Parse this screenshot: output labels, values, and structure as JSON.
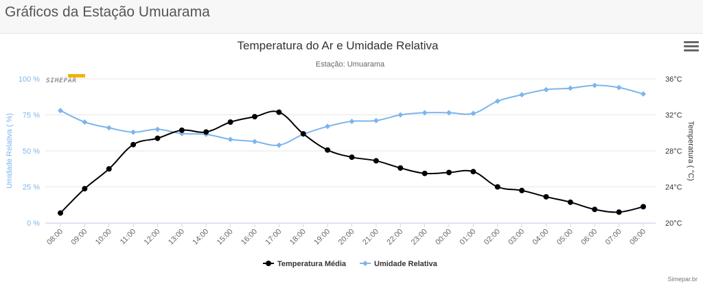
{
  "header": {
    "title": "Gráficos da Estação Umuarama"
  },
  "menu_icon": "hamburger-menu-icon",
  "logo": {
    "text": "SIMEPAR",
    "bar_color": "#f0b400"
  },
  "credits": "Simepar.br",
  "colors": {
    "temperature": "#000000",
    "humidity": "#7cb5ec",
    "humidity_axis": "#7cb5ec",
    "temperature_axis": "#333333",
    "grid": "#e6e6e6",
    "text": "#666666"
  },
  "chart_data": {
    "type": "line",
    "title": "Temperatura do Ar e Umidade Relativa",
    "subtitle": "Estação: Umuarama",
    "categories": [
      "08:00",
      "09:00",
      "10:00",
      "11:00",
      "12:00",
      "13:00",
      "14:00",
      "15:00",
      "16:00",
      "17:00",
      "18:00",
      "19:00",
      "20:00",
      "21:00",
      "22:00",
      "23:00",
      "00:00",
      "01:00",
      "02:00",
      "03:00",
      "04:00",
      "05:00",
      "06:00",
      "07:00",
      "08:00"
    ],
    "y_left": {
      "label": "Umidade Relativa ( %)",
      "min": 0,
      "max": 100,
      "ticks": [
        0,
        25,
        50,
        75,
        100
      ],
      "tick_labels": [
        "0 %",
        "25 %",
        "50 %",
        "75 %",
        "100 %"
      ]
    },
    "y_right": {
      "label": "Temperatura ( °C)",
      "min": 20,
      "max": 36,
      "ticks": [
        20,
        24,
        28,
        32,
        36
      ],
      "tick_labels": [
        "20°C",
        "24°C",
        "28°C",
        "32°C",
        "36°C"
      ]
    },
    "grid": true,
    "legend_position": "bottom-center",
    "series": [
      {
        "name": "Temperatura Média",
        "axis": "right",
        "marker": "circle",
        "values": [
          21.1,
          23.8,
          26.0,
          28.7,
          29.4,
          30.3,
          30.1,
          31.2,
          31.8,
          32.3,
          29.9,
          28.1,
          27.3,
          26.9,
          26.1,
          25.5,
          25.6,
          25.7,
          24.0,
          23.6,
          22.9,
          22.3,
          21.5,
          21.2,
          21.8
        ]
      },
      {
        "name": "Umidade Relativa",
        "axis": "left",
        "marker": "diamond",
        "values": [
          78,
          70,
          66,
          63,
          65,
          62,
          61.5,
          58,
          56.5,
          54,
          61.5,
          67,
          70.5,
          71,
          75,
          76.5,
          76.5,
          76,
          84.5,
          89,
          92.5,
          93.5,
          95.5,
          94,
          89.5
        ]
      }
    ]
  }
}
